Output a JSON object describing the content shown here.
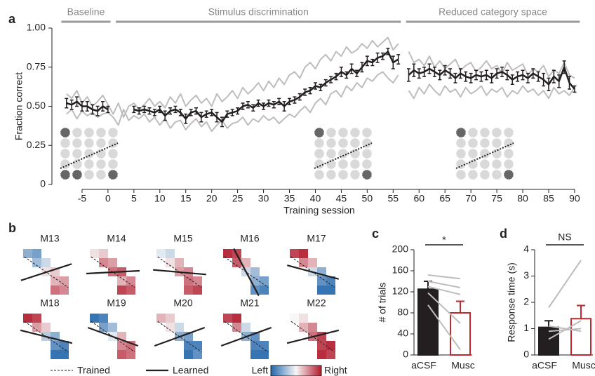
{
  "chart_data": [
    {
      "type": "line",
      "panel": "a",
      "ylabel": "Fraction correct",
      "xlabel": "Training session",
      "xlim": [
        -10,
        91.5
      ],
      "ylim": [
        0,
        1
      ],
      "xticks": [
        -5,
        0,
        5,
        10,
        15,
        20,
        25,
        30,
        35,
        40,
        45,
        50,
        55,
        60,
        65,
        70,
        75,
        80,
        85,
        90
      ],
      "yticks": [
        0,
        0.25,
        {
          "value": 0.5,
          "label": "0.50"
        },
        0.75,
        {
          "value": 1,
          "label": "1.00"
        }
      ],
      "sections": [
        {
          "label": "Baseline",
          "range": [
            -9,
            0.5
          ]
        },
        {
          "label": "Stimulus discrimination",
          "range": [
            1.5,
            56.5
          ]
        },
        {
          "label": "Reduced category space",
          "range": [
            57.5,
            91
          ]
        }
      ],
      "x": [
        -8,
        -7,
        -6,
        -5,
        -4,
        -3,
        -2,
        -1,
        0,
        1,
        2,
        3,
        4,
        5,
        6,
        7,
        8,
        9,
        10,
        11,
        12,
        13,
        14,
        15,
        16,
        17,
        18,
        19,
        20,
        21,
        22,
        23,
        24,
        25,
        26,
        27,
        28,
        29,
        30,
        31,
        32,
        33,
        34,
        35,
        36,
        37,
        38,
        39,
        40,
        41,
        42,
        43,
        44,
        45,
        46,
        47,
        48,
        49,
        50,
        51,
        52,
        53,
        54,
        55,
        56,
        57,
        58,
        59,
        60,
        61,
        62,
        63,
        64,
        65,
        66,
        67,
        68,
        69,
        70,
        71,
        72,
        73,
        74,
        75,
        76,
        77,
        78,
        79,
        80,
        81,
        82,
        83,
        84,
        85,
        86,
        87,
        88,
        89,
        90
      ],
      "series": [
        {
          "color": "#bdbdbd",
          "values": [
            0.58,
            0.55,
            0.6,
            0.52,
            0.56,
            0.5,
            0.53,
            0.57,
            0.51,
            0.45,
            0.52,
            0.43,
            0.5,
            0.52,
            0.48,
            0.51,
            0.55,
            0.5,
            0.53,
            0.49,
            0.56,
            0.52,
            0.58,
            0.5,
            0.54,
            0.57,
            0.52,
            0.55,
            0.5,
            0.58,
            0.53,
            0.56,
            0.6,
            0.55,
            0.62,
            0.58,
            0.61,
            0.65,
            0.6,
            0.66,
            0.62,
            0.68,
            0.64,
            0.7,
            0.72,
            0.68,
            0.75,
            0.78,
            0.74,
            0.8,
            0.83,
            0.79,
            0.85,
            0.82,
            0.88,
            0.84,
            0.86,
            0.9,
            0.87,
            0.92,
            0.88,
            0.91,
            0.94,
            0.86,
            0.9,
            null,
            0.85,
            0.78,
            0.8,
            0.76,
            0.82,
            0.75,
            0.79,
            0.74,
            0.77,
            0.8,
            0.73,
            0.76,
            0.78,
            0.72,
            0.75,
            0.79,
            0.74,
            0.76,
            0.71,
            0.78,
            0.73,
            0.75,
            0.77,
            0.7,
            0.74,
            0.72,
            0.76,
            0.69,
            0.73,
            0.71,
            0.78,
            0.7,
            0.68
          ]
        },
        {
          "color": "#bdbdbd",
          "values": [
            0.45,
            0.48,
            0.42,
            0.47,
            0.44,
            0.46,
            0.43,
            0.45,
            0.46,
            0.43,
            0.38,
            0.48,
            0.41,
            0.44,
            0.42,
            0.45,
            0.4,
            0.43,
            0.38,
            0.42,
            0.36,
            0.4,
            0.41,
            0.35,
            0.39,
            0.42,
            0.37,
            0.4,
            0.34,
            0.38,
            0.41,
            0.36,
            0.39,
            0.4,
            0.43,
            0.38,
            0.42,
            0.4,
            0.44,
            0.41,
            0.43,
            0.39,
            0.42,
            0.45,
            0.43,
            0.47,
            0.5,
            0.46,
            0.52,
            0.55,
            0.51,
            0.58,
            0.6,
            0.56,
            0.63,
            0.6,
            0.65,
            0.62,
            0.68,
            0.66,
            0.7,
            0.72,
            0.68,
            0.65,
            0.7,
            null,
            0.6,
            0.55,
            0.62,
            0.58,
            0.64,
            0.6,
            0.57,
            0.63,
            0.59,
            0.61,
            0.56,
            0.62,
            0.58,
            0.6,
            0.63,
            0.57,
            0.61,
            0.59,
            0.62,
            0.56,
            0.6,
            0.58,
            0.63,
            0.59,
            0.61,
            0.57,
            0.6,
            0.55,
            0.62,
            0.58,
            0.6,
            0.57,
            0.62
          ]
        },
        {
          "color": "#231f20",
          "values": [
            0.52,
            0.51,
            0.53,
            0.5,
            0.5,
            0.48,
            0.47,
            0.5,
            0.48,
            null,
            null,
            null,
            null,
            0.48,
            0.47,
            0.48,
            0.47,
            0.46,
            0.48,
            0.44,
            0.47,
            0.48,
            0.46,
            0.42,
            0.46,
            0.47,
            0.43,
            0.45,
            0.46,
            0.43,
            0.4,
            0.45,
            0.46,
            0.47,
            0.5,
            0.51,
            0.49,
            0.52,
            0.5,
            0.52,
            0.51,
            0.53,
            0.5,
            0.53,
            0.54,
            0.56,
            0.59,
            0.6,
            0.63,
            0.62,
            0.65,
            0.67,
            0.69,
            0.72,
            0.7,
            0.74,
            0.71,
            0.75,
            0.79,
            0.78,
            0.81,
            0.82,
            0.85,
            0.78,
            0.8,
            null,
            0.7,
            0.73,
            0.71,
            0.72,
            0.74,
            0.72,
            0.7,
            0.73,
            0.71,
            0.68,
            0.71,
            0.69,
            0.68,
            0.7,
            0.69,
            0.7,
            0.68,
            0.71,
            0.72,
            0.7,
            0.67,
            0.69,
            0.7,
            0.68,
            0.71,
            0.69,
            0.67,
            0.64,
            0.69,
            0.66,
            0.75,
            0.65,
            0.61
          ],
          "errors": [
            0.03,
            0.03,
            0.03,
            0.03,
            0.03,
            0.03,
            0.03,
            0.03,
            0.02,
            null,
            null,
            null,
            null,
            0.02,
            0.02,
            0.02,
            0.02,
            0.02,
            0.02,
            0.03,
            0.02,
            0.02,
            0.02,
            0.03,
            0.02,
            0.02,
            0.03,
            0.02,
            0.02,
            0.03,
            0.03,
            0.02,
            0.02,
            0.02,
            0.02,
            0.02,
            0.02,
            0.02,
            0.02,
            0.02,
            0.02,
            0.02,
            0.03,
            0.02,
            0.02,
            0.02,
            0.02,
            0.02,
            0.02,
            0.02,
            0.02,
            0.02,
            0.02,
            0.03,
            0.02,
            0.03,
            0.02,
            0.03,
            0.03,
            0.02,
            0.03,
            0.02,
            0.02,
            0.04,
            0.03,
            null,
            0.04,
            0.04,
            0.03,
            0.03,
            0.03,
            0.03,
            0.03,
            0.03,
            0.03,
            0.03,
            0.03,
            0.03,
            0.03,
            0.03,
            0.03,
            0.03,
            0.03,
            0.03,
            0.03,
            0.03,
            0.03,
            0.03,
            0.03,
            0.03,
            0.03,
            0.03,
            0.04,
            0.04,
            0.04,
            0.04,
            0.04,
            0.04,
            0.02
          ]
        }
      ]
    },
    {
      "type": "heatmap",
      "panel": "b",
      "legend": [
        "Trained",
        "Learned"
      ],
      "colorbar_labels": [
        "Left",
        "Right"
      ],
      "colormap": [
        "#2166ac",
        "#f7f7f7",
        "#b2182b"
      ],
      "clim": [
        -1,
        1
      ],
      "trained_angle": -35,
      "panels": [
        {
          "label": "M13",
          "cells": [
            -0.5,
            -0.6,
            -0.4,
            -0.2,
            0.1,
            0.2,
            0.3,
            0.4,
            0.6,
            0.5
          ],
          "learned_angle": 18
        },
        {
          "label": "M14",
          "cells": [
            0.1,
            0.2,
            0.5,
            0.4,
            0.6,
            0.7,
            0.3,
            0.5,
            0.8,
            0.7
          ],
          "learned_angle": 3
        },
        {
          "label": "M15",
          "cells": [
            -0.1,
            -0.2,
            0.1,
            0.3,
            0.4,
            0.5,
            0.6,
            0.5,
            0.7,
            0.8
          ],
          "learned_angle": -5
        },
        {
          "label": "M16",
          "cells": [
            0.9,
            0.8,
            0.7,
            0.3,
            -0.2,
            -0.4,
            -0.5,
            -0.6,
            -0.7,
            -0.8
          ],
          "learned_angle": -62
        },
        {
          "label": "M17",
          "cells": [
            0.8,
            0.9,
            0.5,
            0.3,
            -0.2,
            -0.5,
            -0.7,
            -0.8,
            -0.9,
            -0.9
          ],
          "learned_angle": -15
        },
        {
          "label": "M18",
          "cells": [
            0.9,
            0.8,
            0.4,
            0.2,
            -0.3,
            -0.5,
            -0.7,
            -0.8,
            -0.9,
            -0.9
          ],
          "learned_angle": -14
        },
        {
          "label": "M19",
          "cells": [
            -0.9,
            -0.8,
            -0.6,
            -0.4,
            -0.1,
            0.3,
            0.5,
            0.6,
            0.7,
            0.6
          ],
          "learned_angle": -20
        },
        {
          "label": "M20",
          "cells": [
            0.3,
            0.2,
            0.1,
            -0.2,
            -0.5,
            -0.6,
            -0.8,
            -0.8,
            -0.9,
            -0.7
          ],
          "learned_angle": 20
        },
        {
          "label": "M21",
          "cells": [
            0.8,
            0.9,
            0.5,
            -0.2,
            -0.5,
            -0.7,
            -0.8,
            -0.8,
            -0.9,
            -0.9
          ],
          "learned_angle": 20
        },
        {
          "label": "M22",
          "cells": [
            0.0,
            0.1,
            0.3,
            0.5,
            0.6,
            0.8,
            0.8,
            0.9,
            0.9,
            0.8
          ],
          "learned_angle": 14
        }
      ]
    },
    {
      "type": "bar",
      "panel": "c",
      "ylabel": "# of trials",
      "categories": [
        "aCSF",
        "Musc"
      ],
      "values": [
        125,
        80
      ],
      "errors": [
        15,
        22
      ],
      "colors": [
        "#231f20",
        "#ffffff"
      ],
      "edgecolors": [
        "#231f20",
        "#c1272d"
      ],
      "ylim": [
        0,
        200
      ],
      "yticks": [
        0,
        40,
        80,
        120,
        160,
        200
      ],
      "individual": [
        [
          152,
          145
        ],
        [
          140,
          128
        ],
        [
          130,
          115
        ],
        [
          118,
          60
        ],
        [
          95,
          10
        ]
      ],
      "significance": "*"
    },
    {
      "type": "bar",
      "panel": "d",
      "ylabel": "Response time (s)",
      "categories": [
        "aCSF",
        "Musc"
      ],
      "values": [
        1.05,
        1.38
      ],
      "errors": [
        0.25,
        0.5
      ],
      "colors": [
        "#231f20",
        "#ffffff"
      ],
      "edgecolors": [
        "#231f20",
        "#c1272d"
      ],
      "ylim": [
        0,
        4
      ],
      "yticks": [
        0,
        1,
        2,
        3,
        4
      ],
      "individual": [
        [
          1.8,
          3.6
        ],
        [
          1.1,
          0.9
        ],
        [
          0.6,
          1.3
        ],
        [
          0.9,
          1.0
        ]
      ],
      "significance": "NS"
    }
  ]
}
